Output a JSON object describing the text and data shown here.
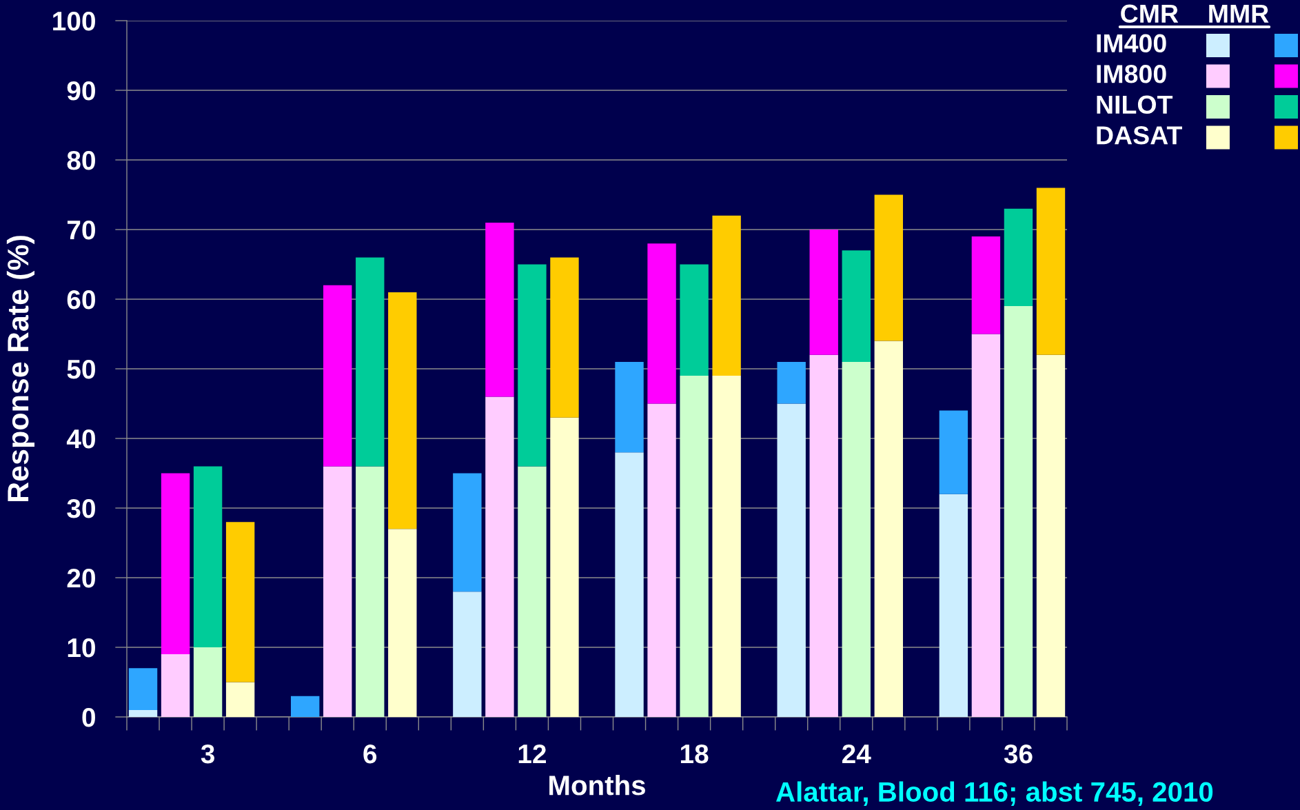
{
  "chart_data": {
    "type": "bar",
    "stacked": true,
    "categories": [
      null,
      null,
      "3",
      null,
      null,
      null,
      null,
      "6",
      null,
      null,
      null,
      null,
      "12",
      null,
      null,
      null,
      null,
      "18",
      null,
      null,
      null,
      null,
      "24",
      null,
      null,
      null,
      null,
      "36",
      null
    ],
    "series": [
      {
        "name": "IM400",
        "color": "#cceeff",
        "values": [
          1,
          null,
          null,
          null,
          null,
          0,
          null,
          null,
          null,
          null,
          18,
          null,
          null,
          null,
          null,
          38,
          null,
          null,
          null,
          null,
          45,
          null,
          null,
          null,
          null,
          32,
          null,
          null,
          null
        ]
      },
      {
        "color": "#2ea6ff",
        "values": [
          6,
          null,
          null,
          null,
          null,
          3,
          null,
          null,
          null,
          null,
          17,
          null,
          null,
          null,
          null,
          13,
          null,
          null,
          null,
          null,
          6,
          null,
          null,
          null,
          null,
          12,
          null,
          null,
          null
        ]
      },
      {
        "name": "IM800",
        "color": "#ffccff",
        "values": [
          null,
          9,
          null,
          null,
          null,
          null,
          36,
          null,
          null,
          null,
          null,
          46,
          null,
          null,
          null,
          null,
          45,
          null,
          null,
          null,
          null,
          52,
          null,
          null,
          null,
          null,
          55,
          null,
          null
        ]
      },
      {
        "color": "#ff00ff",
        "values": [
          null,
          26,
          null,
          null,
          null,
          null,
          26,
          null,
          null,
          null,
          null,
          25,
          null,
          null,
          null,
          null,
          23,
          null,
          null,
          null,
          null,
          18,
          null,
          null,
          null,
          null,
          14,
          null,
          null
        ]
      },
      {
        "name": "NILOT",
        "color": "#ccffcc",
        "values": [
          null,
          null,
          10,
          null,
          null,
          null,
          null,
          36,
          null,
          null,
          null,
          null,
          36,
          null,
          null,
          null,
          null,
          49,
          null,
          null,
          null,
          null,
          51,
          null,
          null,
          null,
          null,
          59,
          null
        ]
      },
      {
        "color": "#00cc99",
        "values": [
          null,
          null,
          26,
          null,
          null,
          null,
          null,
          30,
          null,
          null,
          null,
          null,
          29,
          null,
          null,
          null,
          null,
          16,
          null,
          null,
          null,
          null,
          16,
          null,
          null,
          null,
          null,
          14,
          null
        ]
      },
      {
        "name": "DASAT",
        "color": "#ffffcc",
        "values": [
          null,
          null,
          null,
          5,
          null,
          null,
          null,
          null,
          27,
          null,
          null,
          null,
          null,
          43,
          null,
          null,
          null,
          null,
          49,
          null,
          null,
          null,
          null,
          54,
          null,
          null,
          null,
          null,
          52
        ]
      },
      {
        "color": "#ffcc00",
        "values": [
          null,
          null,
          null,
          23,
          null,
          null,
          null,
          null,
          34,
          null,
          null,
          null,
          null,
          23,
          null,
          null,
          null,
          null,
          23,
          null,
          null,
          null,
          null,
          21,
          null,
          null,
          null,
          null,
          24
        ]
      }
    ],
    "ylim": [
      0,
      100
    ],
    "yticks": [
      0,
      10,
      20,
      30,
      40,
      50,
      60,
      70,
      80,
      90,
      100
    ],
    "grid": "y",
    "legend": "top right",
    "legend_title": "CMR    MMR",
    "xlabel": "Months",
    "ylabel": "Response Rate (%)",
    "annotations": [
      "Alattar, Blood 116; abst 745, 2010"
    ]
  }
}
